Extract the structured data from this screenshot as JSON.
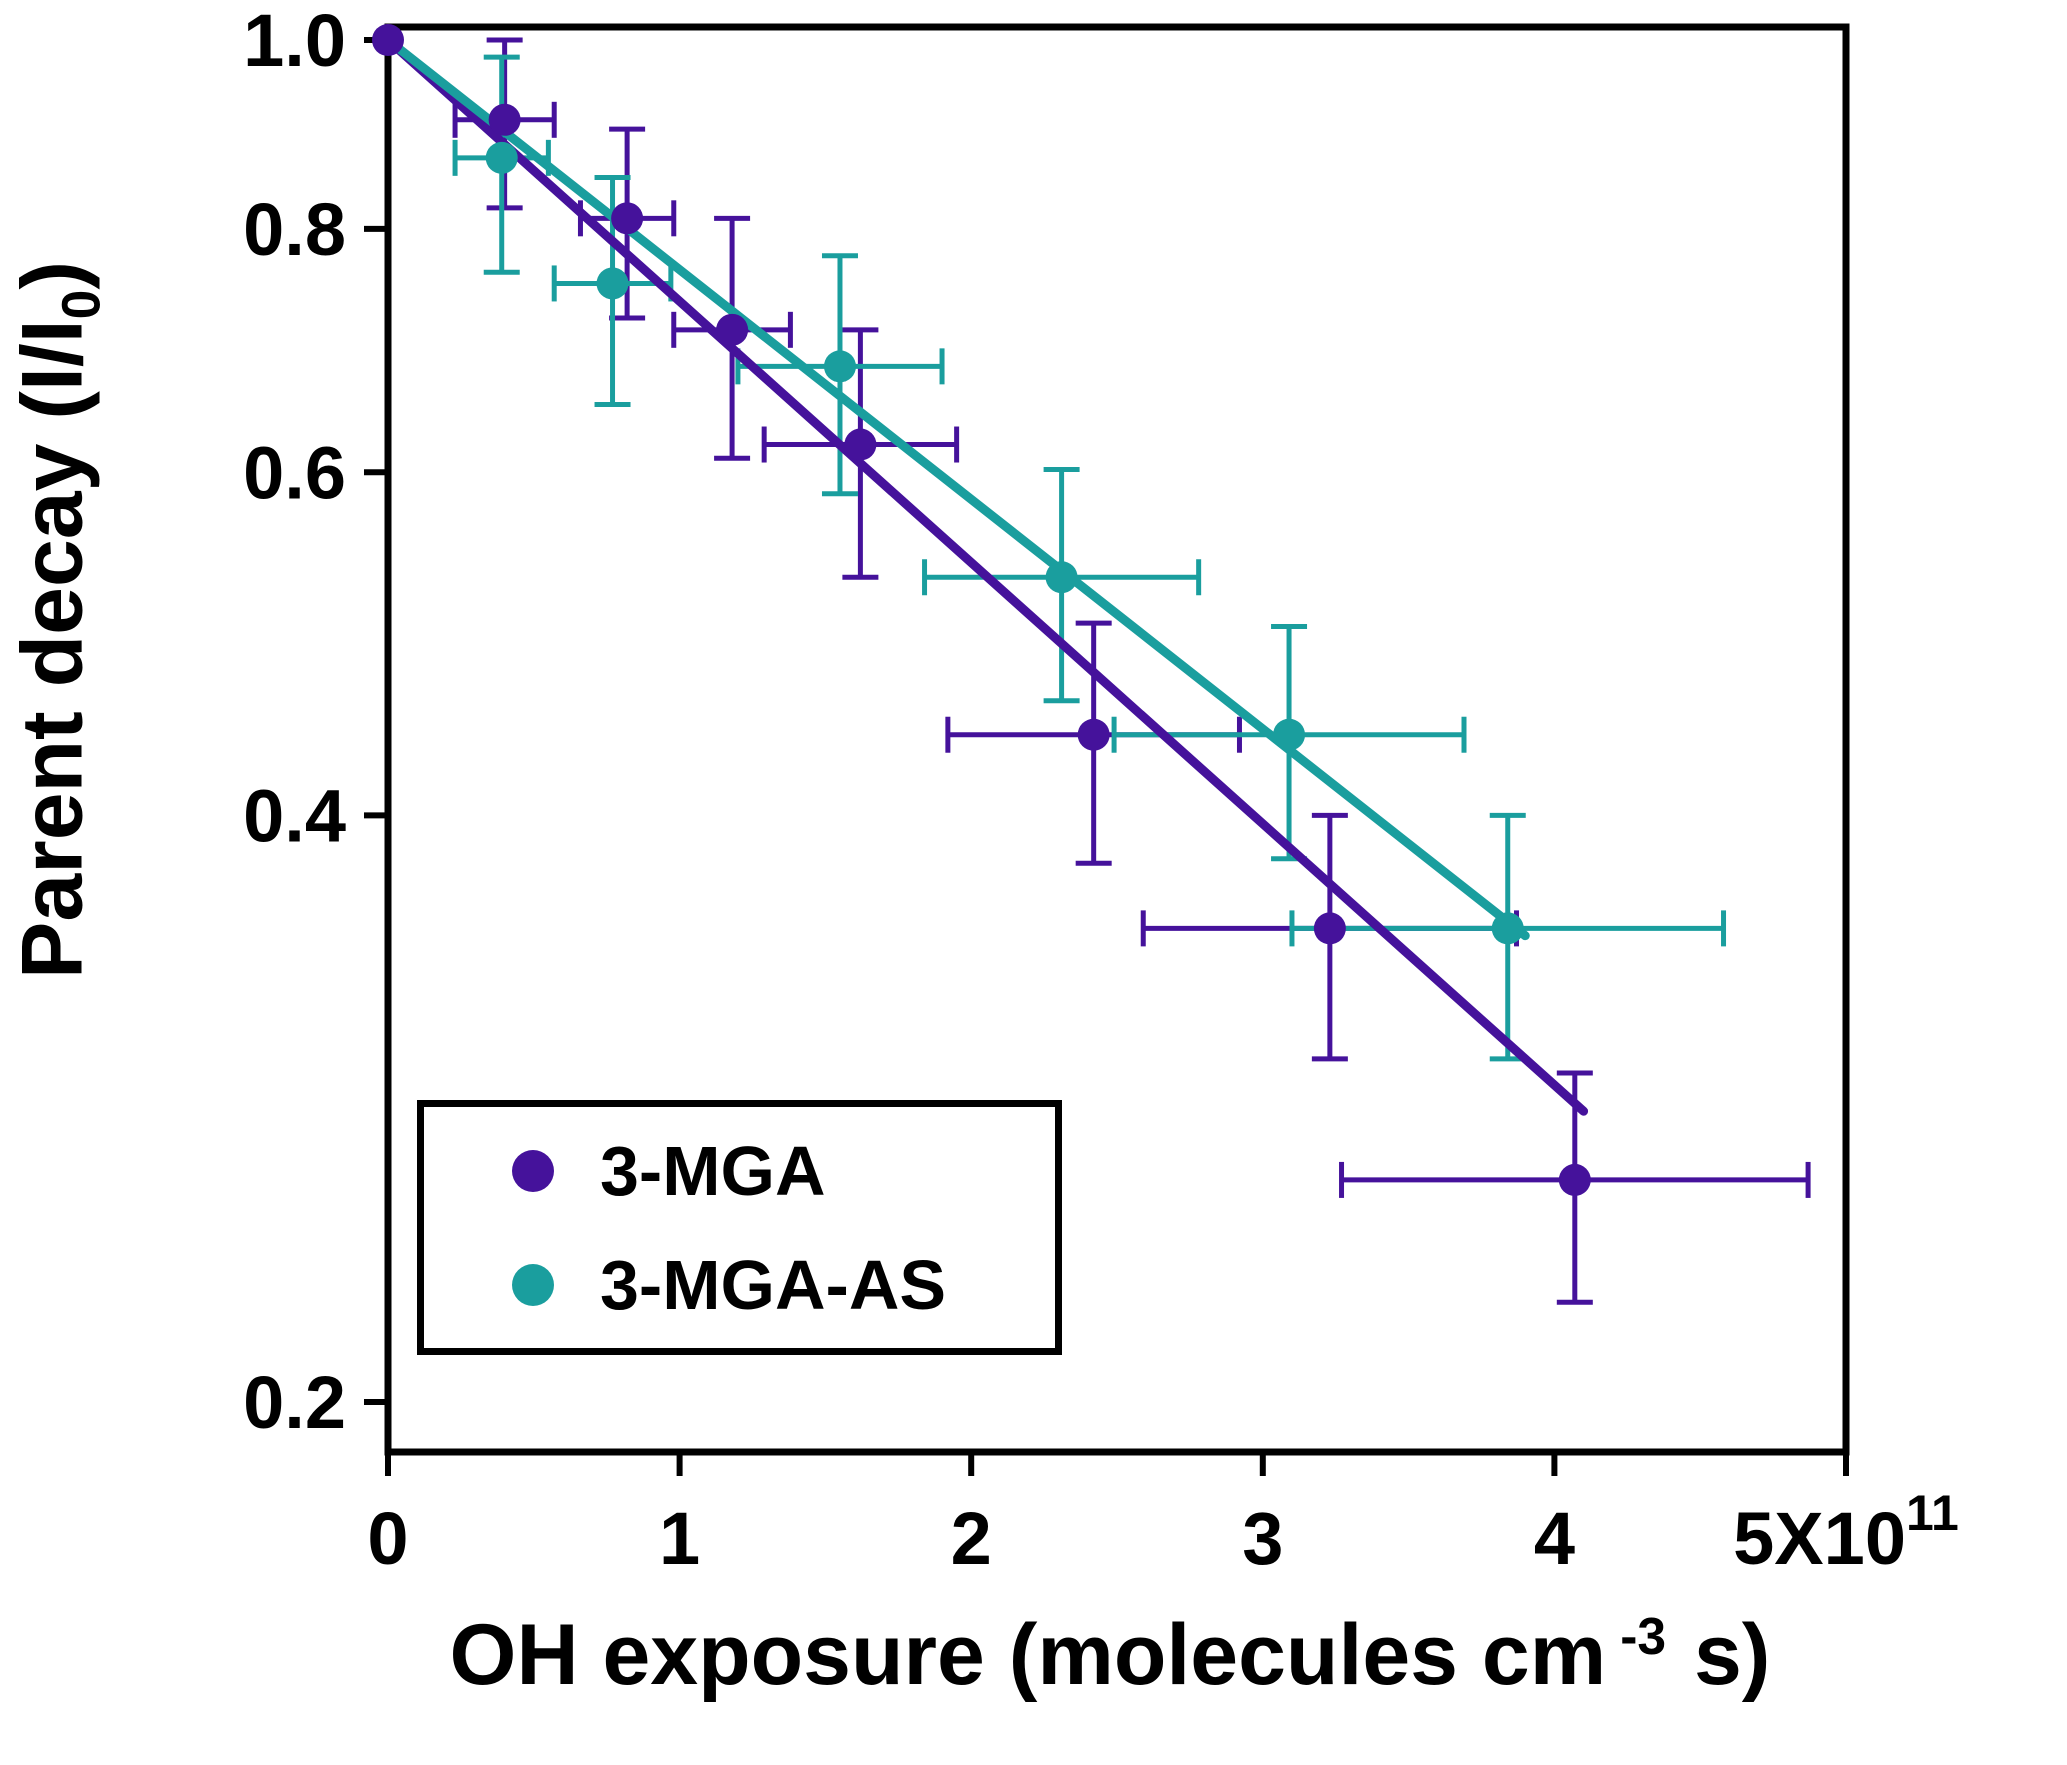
{
  "figure": {
    "xlabel": {
      "pre": "OH exposure (molecules cm",
      "sup": "-3",
      "post": " s)"
    },
    "ylabel": {
      "pre": "Parent decay (I/I",
      "sub": "0",
      "post": ")"
    }
  },
  "chart_data": {
    "type": "scatter",
    "title": "",
    "xlabel": "OH exposure (molecules cm^-3 s)",
    "ylabel": "Parent decay (I/I0)",
    "x_axis": {
      "scale": "linear",
      "units": "molecules cm^-3 s",
      "unit_multiplier": "1e11",
      "range_in_1e11": [
        0,
        5
      ],
      "ticks": [
        0,
        1,
        2,
        3,
        4,
        5
      ],
      "tick_labels": [
        "0",
        "1",
        "2",
        "3",
        "4",
        "5X10"
      ],
      "last_tick_sup": "11"
    },
    "y_axis": {
      "scale": "log",
      "range": [
        0.2,
        1.0
      ],
      "ticks": [
        1.0,
        0.8,
        0.6,
        0.4,
        0.2
      ],
      "tick_labels": [
        "1.0",
        "0.8",
        "0.6",
        "0.4",
        "0.2"
      ]
    },
    "legend_position": "lower-left",
    "grid": false,
    "series": [
      {
        "name": "3-MGA",
        "color": "#45129B",
        "marker": "circle",
        "fit": {
          "x0": 0,
          "y0": 1.0,
          "x1": 4.1,
          "y1": 0.282
        },
        "points": [
          {
            "x": 0.0,
            "y": 1.0,
            "ex": 0.0,
            "ey": 0.0
          },
          {
            "x": 0.4,
            "y": 0.91,
            "ex": 0.17,
            "ey": 0.09
          },
          {
            "x": 0.82,
            "y": 0.81,
            "ex": 0.16,
            "ey": 0.09
          },
          {
            "x": 1.18,
            "y": 0.71,
            "ex": 0.2,
            "ey": 0.1
          },
          {
            "x": 1.62,
            "y": 0.62,
            "ex": 0.33,
            "ey": 0.09
          },
          {
            "x": 2.42,
            "y": 0.44,
            "ex": 0.5,
            "ey": 0.062
          },
          {
            "x": 3.23,
            "y": 0.35,
            "ex": 0.64,
            "ey": 0.05
          },
          {
            "x": 4.07,
            "y": 0.26,
            "ex": 0.8,
            "ey": 0.035
          }
        ]
      },
      {
        "name": "3-MGA-AS",
        "color": "#1A9E9E",
        "marker": "circle",
        "fit": {
          "x0": 0,
          "y0": 1.0,
          "x1": 3.9,
          "y1": 0.347
        },
        "points": [
          {
            "x": 0.39,
            "y": 0.87,
            "ex": 0.16,
            "ey": 0.11
          },
          {
            "x": 0.77,
            "y": 0.75,
            "ex": 0.2,
            "ey": 0.1
          },
          {
            "x": 1.55,
            "y": 0.68,
            "ex": 0.35,
            "ey": 0.095
          },
          {
            "x": 2.31,
            "y": 0.53,
            "ex": 0.47,
            "ey": 0.072
          },
          {
            "x": 3.09,
            "y": 0.44,
            "ex": 0.6,
            "ey": 0.06
          },
          {
            "x": 3.84,
            "y": 0.35,
            "ex": 0.74,
            "ey": 0.05
          }
        ]
      }
    ]
  }
}
